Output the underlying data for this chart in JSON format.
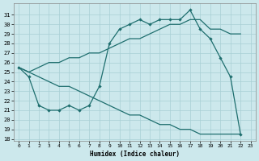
{
  "xlabel": "Humidex (Indice chaleur)",
  "background_color": "#cce8ec",
  "grid_color": "#a8cfd5",
  "line_color": "#1e6e6e",
  "xlim": [
    -0.5,
    23.5
  ],
  "ylim": [
    17.8,
    32.2
  ],
  "yticks": [
    18,
    19,
    20,
    21,
    22,
    23,
    24,
    25,
    26,
    27,
    28,
    29,
    30,
    31
  ],
  "xticks": [
    0,
    1,
    2,
    3,
    4,
    5,
    6,
    7,
    8,
    9,
    10,
    11,
    12,
    13,
    14,
    15,
    16,
    17,
    18,
    19,
    20,
    21,
    22,
    23
  ],
  "main_x": [
    0,
    1,
    2,
    3,
    4,
    5,
    6,
    7,
    8,
    9,
    10,
    11,
    12,
    13,
    14,
    15,
    16,
    17,
    18,
    19,
    20,
    21,
    22
  ],
  "main_y": [
    25.5,
    24.5,
    21.5,
    21.0,
    21.0,
    21.5,
    21.0,
    21.5,
    23.5,
    28.0,
    29.5,
    30.0,
    30.5,
    30.0,
    30.5,
    30.5,
    30.5,
    31.5,
    29.5,
    28.5,
    26.5,
    24.5,
    18.5
  ],
  "upper_x": [
    0,
    1,
    2,
    3,
    4,
    5,
    6,
    7,
    8,
    9,
    10,
    11,
    12,
    13,
    14,
    15,
    16,
    17,
    18,
    19,
    20,
    21,
    22
  ],
  "upper_y": [
    25.5,
    25.0,
    25.5,
    26.0,
    26.0,
    26.5,
    26.5,
    27.0,
    27.0,
    27.5,
    28.0,
    28.5,
    28.5,
    29.0,
    29.5,
    30.0,
    30.0,
    30.5,
    30.5,
    29.5,
    29.5,
    29.0,
    29.0
  ],
  "lower_x": [
    0,
    1,
    2,
    3,
    4,
    5,
    6,
    7,
    8,
    9,
    10,
    11,
    12,
    13,
    14,
    15,
    16,
    17,
    18,
    19,
    20,
    21,
    22
  ],
  "lower_y": [
    25.5,
    25.0,
    24.5,
    24.0,
    23.5,
    23.5,
    23.0,
    22.5,
    22.0,
    21.5,
    21.0,
    20.5,
    20.5,
    20.0,
    19.5,
    19.5,
    19.0,
    19.0,
    18.5,
    18.5,
    18.5,
    18.5,
    18.5
  ]
}
